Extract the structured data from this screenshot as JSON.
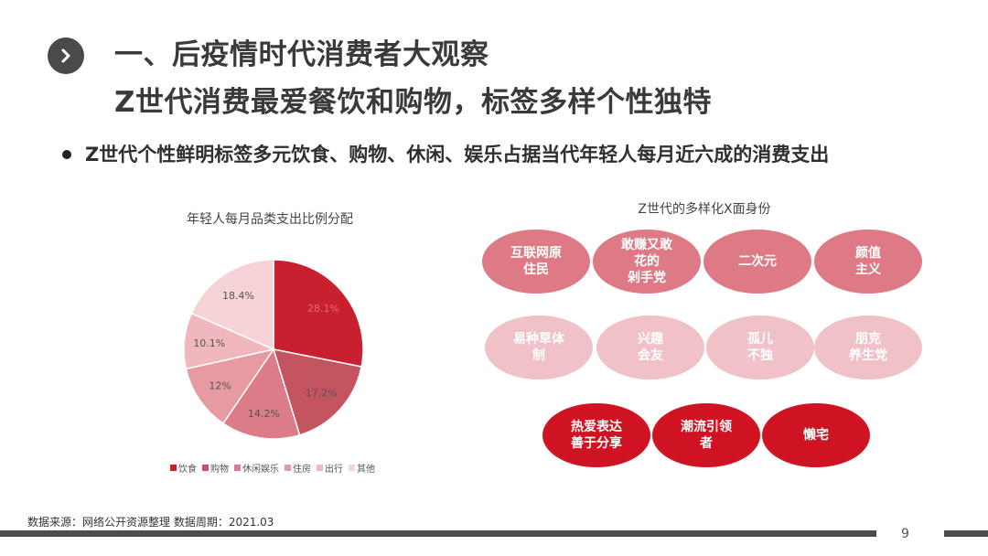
{
  "header": {
    "title_line1": "一、后疫情时代消费者大观察",
    "title_line2": "Z世代消费最爱餐饮和购物，标签多样个性独特",
    "chevron_icon": "chevron-right-icon"
  },
  "bullet": {
    "text": "Z世代个性鲜明标签多元饮食、购物、休闲、娱乐占据当代年轻人每月近六成的消费支出"
  },
  "chart_data": {
    "type": "pie",
    "title": "年轻人每月品类支出比例分配",
    "categories": [
      "饮食",
      "购物",
      "休闲娱乐",
      "住房",
      "出行",
      "其他"
    ],
    "values": [
      28.1,
      17.2,
      14.2,
      12,
      10.1,
      18.4
    ],
    "value_labels": [
      "28.1%",
      "17.2%",
      "14.2%",
      "12%",
      "10.1%",
      "18.4%"
    ],
    "colors": [
      "#c8202f",
      "#c45560",
      "#dc7c88",
      "#e89aa3",
      "#f0b8be",
      "#f5d3d6"
    ],
    "legend_position": "bottom"
  },
  "tags": {
    "title": "Z世代的多样化X面身份",
    "items": [
      {
        "label": "互联网原\n住民",
        "row": 1
      },
      {
        "label": "敢赚又敢\n花的\n剁手党",
        "row": 1
      },
      {
        "label": "二次元",
        "row": 1
      },
      {
        "label": "颜值\n主义",
        "row": 1
      },
      {
        "label": "易种草体\n制",
        "row": 2
      },
      {
        "label": "兴趣\n会友",
        "row": 2
      },
      {
        "label": "孤儿\n不独",
        "row": 2
      },
      {
        "label": "朋克\n养生党",
        "row": 2
      },
      {
        "label": "热爱表达\n善于分享",
        "row": 3
      },
      {
        "label": "潮流引领\n者",
        "row": 3
      },
      {
        "label": "懒宅",
        "row": 3
      }
    ]
  },
  "footer": {
    "source": "数据来源：网络公开资源整理 数据周期：2021.03",
    "page_number": "9"
  }
}
